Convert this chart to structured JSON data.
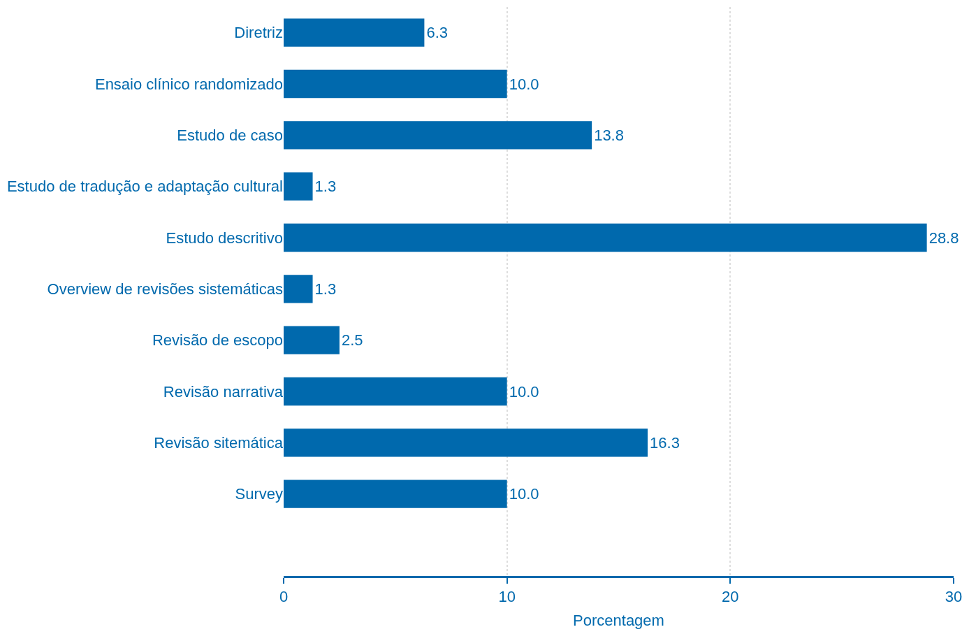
{
  "chart_data": {
    "type": "bar",
    "orientation": "horizontal",
    "xlabel": "Porcentagem",
    "categories": [
      "Diretriz",
      "Ensaio clínico randomizado",
      "Estudo de caso",
      "Estudo de tradução e adaptação cultural",
      "Estudo descritivo",
      "Overview de revisões sistemáticas",
      "Revisão de escopo",
      "Revisão narrativa",
      "Revisão sitemática",
      "Survey"
    ],
    "values": [
      6.3,
      10.0,
      13.8,
      1.3,
      28.8,
      1.3,
      2.5,
      10.0,
      16.3,
      10.0
    ],
    "value_labels": [
      "6.3",
      "10.0",
      "13.8",
      "1.3",
      "28.8",
      "1.3",
      "2.5",
      "10.0",
      "16.3",
      "10.0"
    ],
    "color": "#0069ad",
    "xlim": [
      0,
      30
    ],
    "xticks": [
      0,
      10,
      20,
      30
    ],
    "grid": "x",
    "legend": false
  }
}
